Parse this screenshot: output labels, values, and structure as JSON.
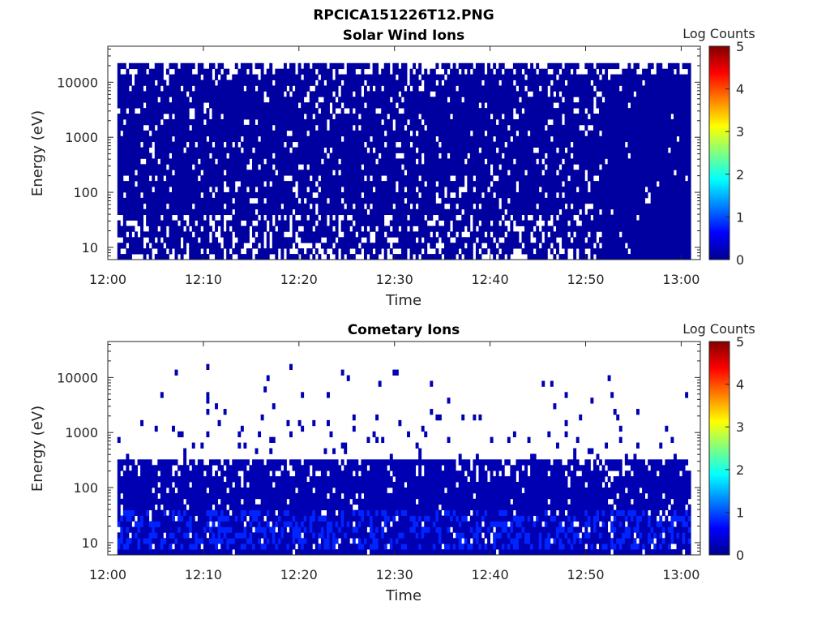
{
  "figure": {
    "title": "RPCICA151226T12.PNG"
  },
  "colors": {
    "background": "#ffffff",
    "nodata": "#ffffff",
    "low": "#00008f",
    "colormap": [
      "#00008f",
      "#0000ff",
      "#0080ff",
      "#00ffff",
      "#80ff80",
      "#ffff00",
      "#ff8000",
      "#ff0000",
      "#800000"
    ]
  },
  "chart_data": [
    {
      "type": "heatmap",
      "title": "Solar Wind Ions",
      "xlabel": "Time",
      "ylabel": "Energy (eV)",
      "xlim": [
        "12:00",
        "13:02"
      ],
      "ylim": [
        6,
        45000
      ],
      "yscale": "log",
      "x_ticks": [
        "12:00",
        "12:10",
        "12:20",
        "12:30",
        "12:40",
        "12:50",
        "13:00"
      ],
      "y_ticks": [
        "10",
        "100",
        "1000",
        "10000"
      ],
      "colorbar": {
        "label": "Log Counts",
        "range": [
          0,
          5
        ],
        "ticks": [
          "0",
          "1",
          "2",
          "3",
          "4",
          "5"
        ]
      },
      "data_time_range": [
        "12:01",
        "13:01"
      ],
      "energy_range_ev": [
        6,
        25000
      ],
      "typical_log_counts": 0.1
    },
    {
      "type": "heatmap",
      "title": "Cometary Ions",
      "xlabel": "Time",
      "ylabel": "Energy (eV)",
      "xlim": [
        "12:00",
        "13:02"
      ],
      "ylim": [
        6,
        45000
      ],
      "yscale": "log",
      "x_ticks": [
        "12:00",
        "12:10",
        "12:20",
        "12:30",
        "12:40",
        "12:50",
        "13:00"
      ],
      "y_ticks": [
        "10",
        "100",
        "1000",
        "10000"
      ],
      "colorbar": {
        "label": "Log Counts",
        "range": [
          0,
          5
        ],
        "ticks": [
          "0",
          "1",
          "2",
          "3",
          "4",
          "5"
        ]
      },
      "data_time_range": [
        "12:01",
        "13:01"
      ],
      "dense_energy_range_ev": [
        6,
        300
      ],
      "sparse_energy_range_ev": [
        300,
        16000
      ],
      "enhanced_energy_range_ev": [
        7,
        35
      ],
      "typical_log_counts": 0.2,
      "enhanced_log_counts": 0.8
    }
  ]
}
